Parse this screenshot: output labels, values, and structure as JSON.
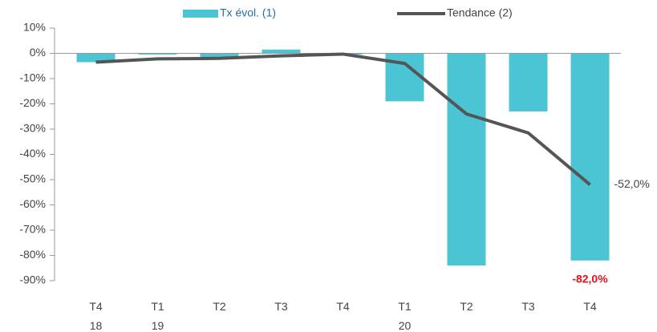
{
  "chart_data": {
    "type": "bar_line",
    "categories": [
      "T4\n18",
      "T1\n19",
      "T2",
      "T3",
      "T4",
      "T1\n20",
      "T2",
      "T3",
      "T4"
    ],
    "series": [
      {
        "name": "Tx évol. (1)",
        "type": "bar",
        "color": "#4bc4d4",
        "values": [
          -3.5,
          -0.5,
          -1.5,
          1.5,
          -0.5,
          -19,
          -84,
          -23,
          -82
        ],
        "value_labels": [
          null,
          null,
          null,
          null,
          null,
          null,
          null,
          null,
          "-82,0%"
        ]
      },
      {
        "name": "Tendance (2)",
        "type": "line",
        "color": "#555555",
        "values": [
          -3.5,
          -2.2,
          -2,
          -1,
          -0.3,
          -4,
          -24,
          -31.5,
          -52
        ],
        "value_labels": [
          null,
          null,
          null,
          null,
          null,
          null,
          null,
          null,
          "-52,0%"
        ]
      }
    ],
    "ylim": [
      -90,
      10
    ],
    "yticks": [
      {
        "value": 10,
        "label": "10%"
      },
      {
        "value": 0,
        "label": "0%"
      },
      {
        "value": -10,
        "label": "-10%"
      },
      {
        "value": -20,
        "label": "-20%"
      },
      {
        "value": -30,
        "label": "-30%"
      },
      {
        "value": -40,
        "label": "-40%"
      },
      {
        "value": -50,
        "label": "-50%"
      },
      {
        "value": -60,
        "label": "-60%"
      },
      {
        "value": -70,
        "label": "-70%"
      },
      {
        "value": -80,
        "label": "-80%"
      },
      {
        "value": -90,
        "label": "-90%"
      }
    ],
    "legend": "top"
  }
}
